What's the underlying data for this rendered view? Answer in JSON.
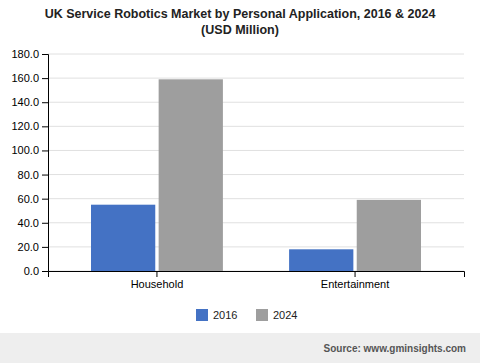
{
  "chart_data": {
    "type": "bar",
    "title": "UK Service Robotics Market by Personal Application, 2016 & 2024\n(USD Million)",
    "categories": [
      "Household",
      "Entertainment"
    ],
    "series": [
      {
        "name": "2016",
        "color": "#4472c4",
        "values": [
          55,
          18
        ]
      },
      {
        "name": "2024",
        "color": "#9e9e9e",
        "values": [
          159,
          59
        ]
      }
    ],
    "ylim": [
      0,
      180
    ],
    "yticks": [
      {
        "value": 0,
        "label": "0.0"
      },
      {
        "value": 20,
        "label": "20.0"
      },
      {
        "value": 40,
        "label": "40.0"
      },
      {
        "value": 60,
        "label": "60.0"
      },
      {
        "value": 80,
        "label": "80.0"
      },
      {
        "value": 100,
        "label": "100.0"
      },
      {
        "value": 120,
        "label": "120.0"
      },
      {
        "value": 140,
        "label": "140.0"
      },
      {
        "value": 160,
        "label": "160.0"
      },
      {
        "value": 180,
        "label": "180.0"
      }
    ],
    "grid": true,
    "legend": "bottom",
    "annotations": [
      "Source: www.gminsights.com"
    ]
  }
}
